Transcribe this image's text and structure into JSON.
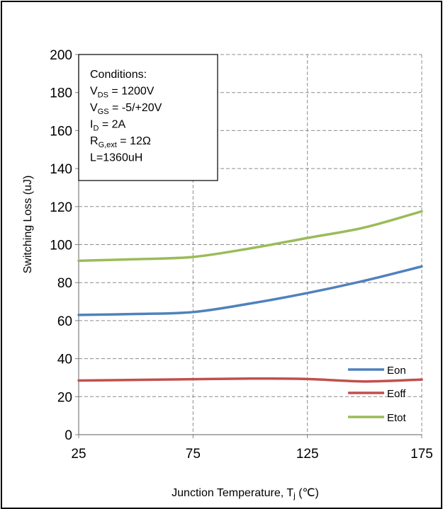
{
  "chart_data": {
    "type": "line",
    "title": "",
    "xlabel": "Junction Temperature, T",
    "xlabel_sub": "j",
    "xlabel_unit": " (℃)",
    "ylabel": "Switching Loss (uJ)",
    "xlim": [
      25,
      175
    ],
    "ylim": [
      0,
      200
    ],
    "x_ticks": [
      "25",
      "75",
      "125",
      "175"
    ],
    "y_ticks": [
      "0",
      "20",
      "40",
      "60",
      "80",
      "100",
      "120",
      "140",
      "160",
      "180",
      "200"
    ],
    "grid": true,
    "legend_position": "bottom-right",
    "series": [
      {
        "name": "Eon",
        "color": "#4f81bd",
        "x": [
          25,
          50,
          75,
          100,
          125,
          150,
          175
        ],
        "y": [
          63,
          63.5,
          64.5,
          69,
          74.5,
          81,
          88.5
        ]
      },
      {
        "name": "Eoff",
        "color": "#c0504d",
        "x": [
          25,
          50,
          75,
          100,
          125,
          150,
          175
        ],
        "y": [
          28.5,
          28.8,
          29.2,
          29.5,
          29.3,
          28,
          29
        ]
      },
      {
        "name": "Etot",
        "color": "#9bbb59",
        "x": [
          25,
          50,
          75,
          100,
          125,
          150,
          175
        ],
        "y": [
          91.5,
          92.3,
          93.5,
          98,
          103.5,
          109,
          117.5
        ]
      }
    ],
    "annotation": {
      "lines": [
        {
          "main": "Conditions:",
          "sub": "",
          "rest": ""
        },
        {
          "main": "V",
          "sub": "DS",
          "rest": " = 1200V"
        },
        {
          "main": "V",
          "sub": "GS",
          "rest": " = -5/+20V"
        },
        {
          "main": "I",
          "sub": "D",
          "rest": " = 2A"
        },
        {
          "main": "R",
          "sub": "G,ext",
          "rest": " = 12Ω"
        },
        {
          "main": "L=1360uH",
          "sub": "",
          "rest": ""
        }
      ]
    }
  }
}
